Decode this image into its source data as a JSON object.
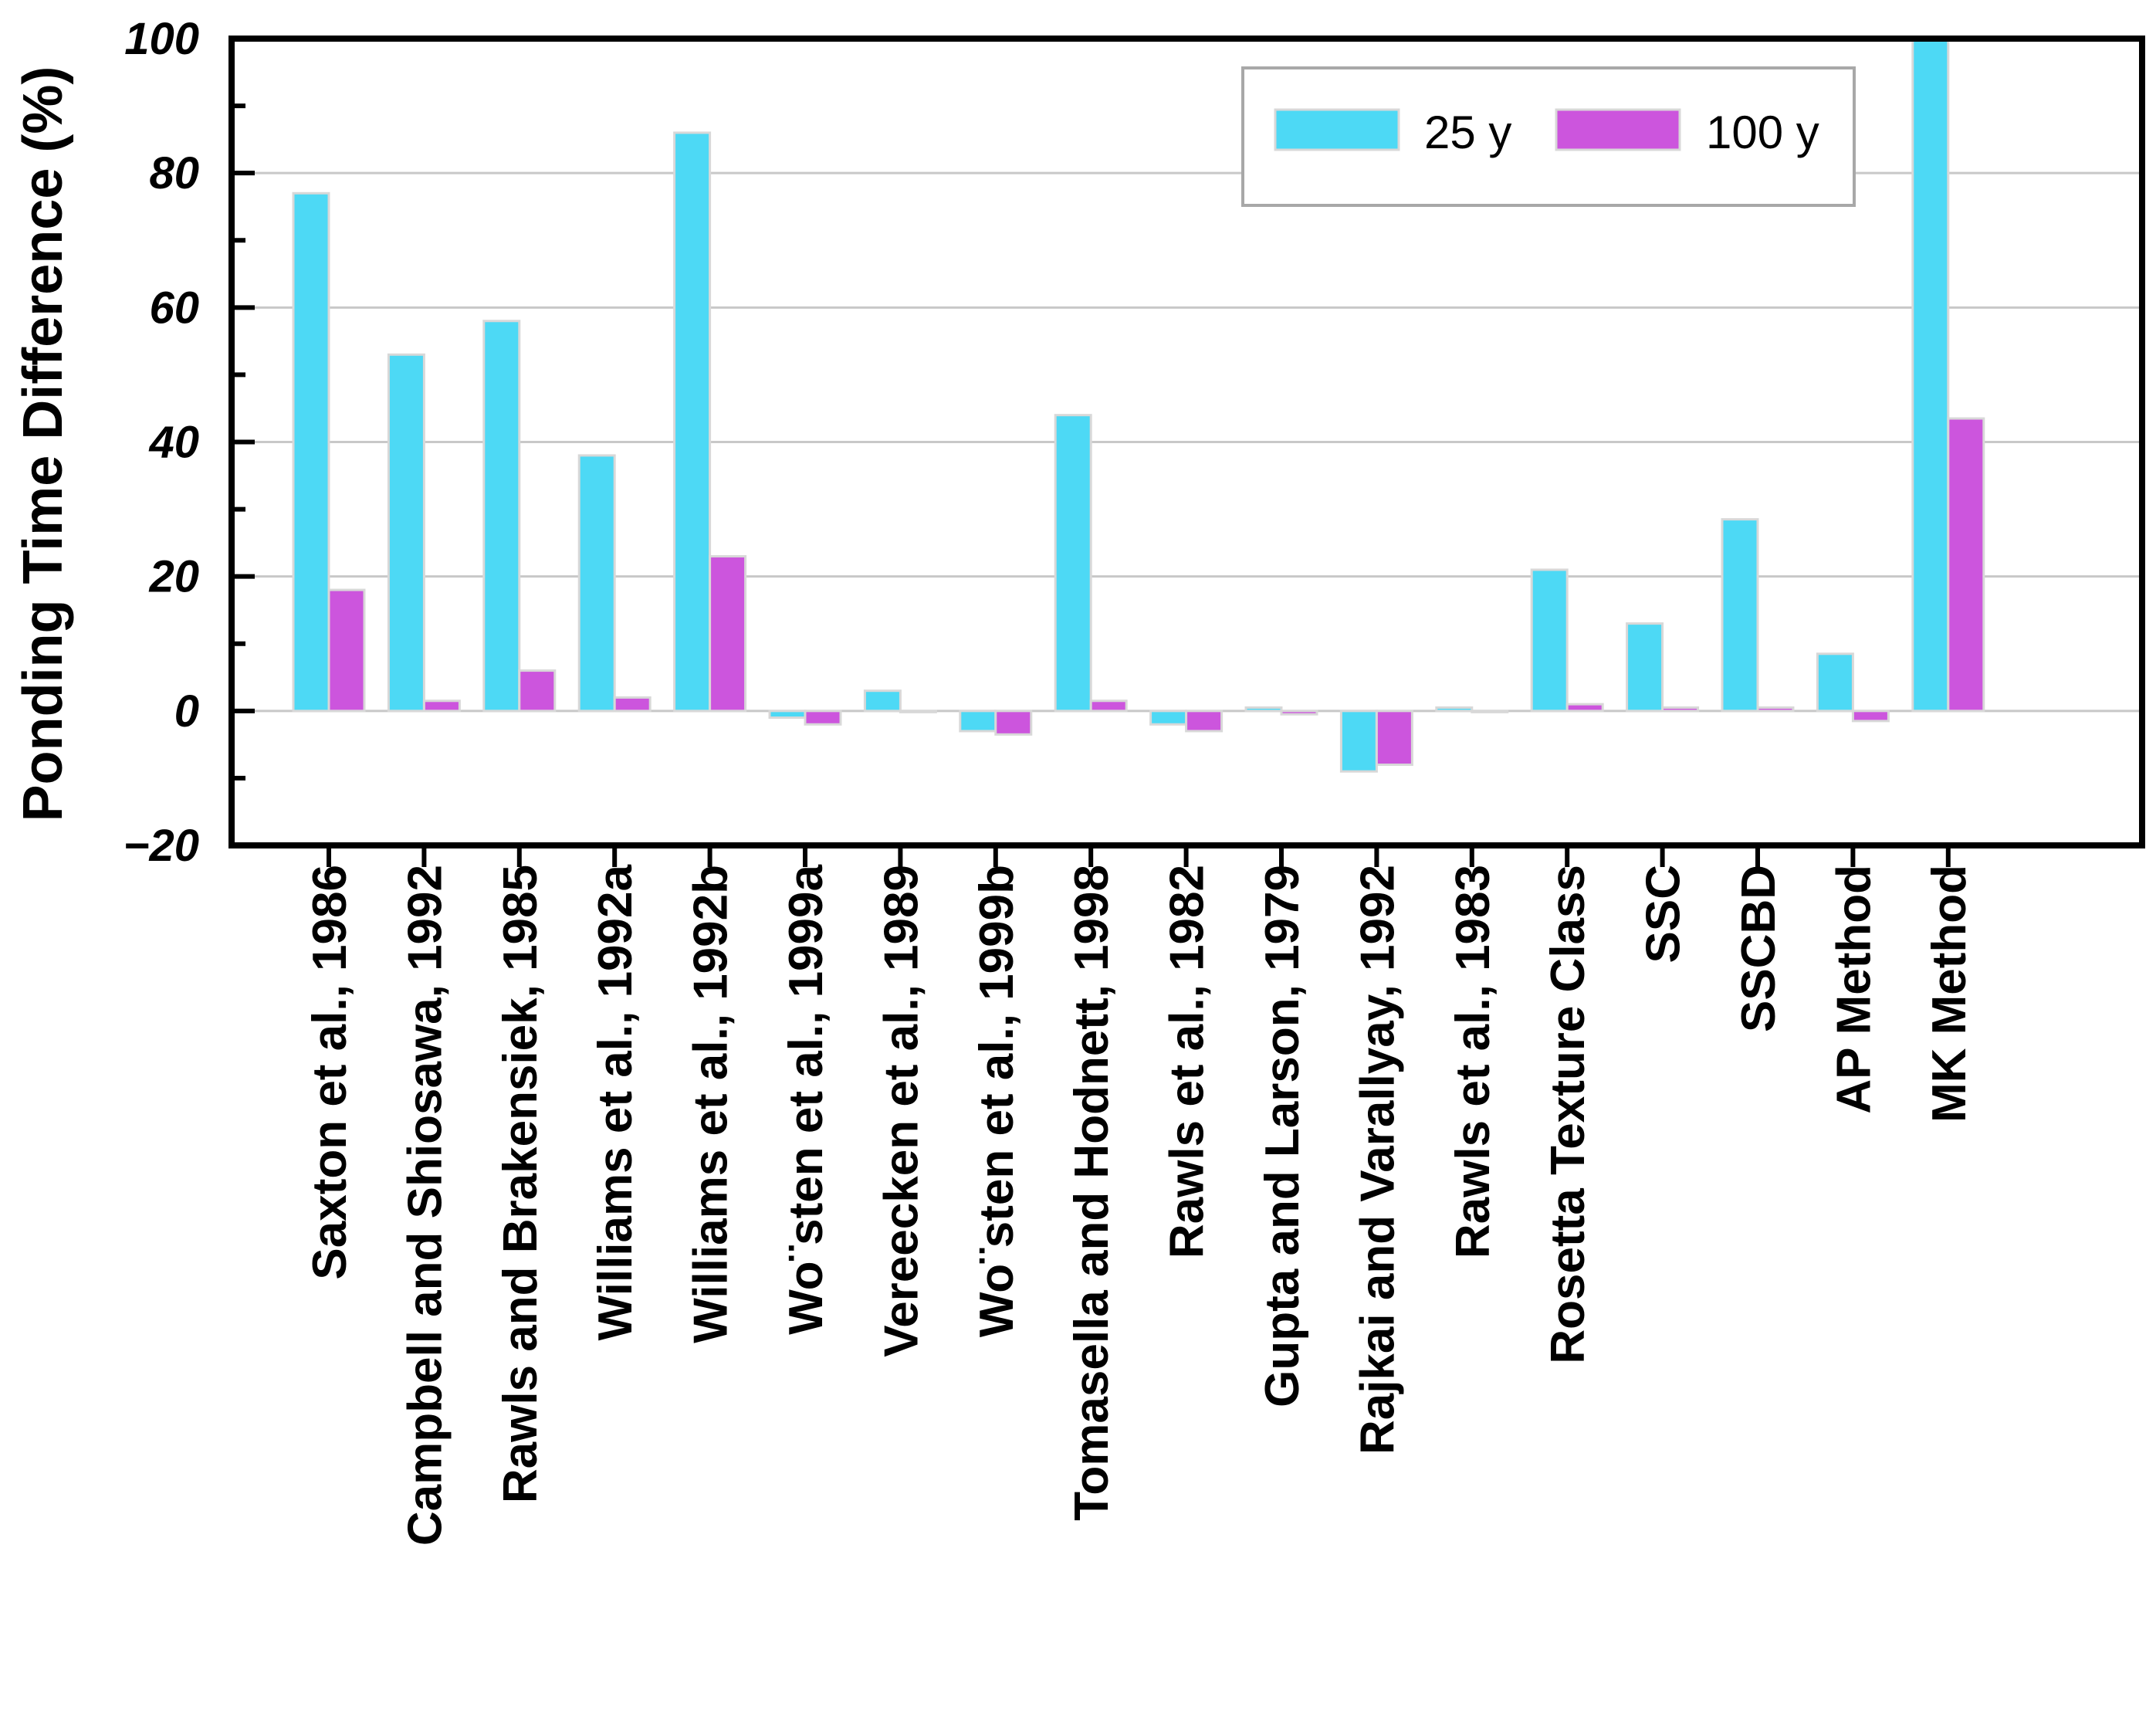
{
  "chart_data": {
    "type": "bar",
    "title": "",
    "xlabel": "",
    "ylabel": "Ponding Time Difference (%)",
    "ylim": [
      -20,
      100
    ],
    "yticks": [
      -20,
      0,
      20,
      40,
      60,
      80,
      100
    ],
    "ytick_labels": [
      "−20",
      "0",
      "20",
      "40",
      "60",
      "80",
      "100"
    ],
    "grid": true,
    "legend_position": "top-right",
    "categories": [
      "Saxton et al., 1986",
      "Campbell and Shiosawa, 1992",
      "Rawls and Brakensiek, 1985",
      "Williams et al., 1992a",
      "Williams et al., 1992b",
      "Wo¨sten et al., 1999a",
      "Vereecken et al., 1989",
      "Wo¨sten et al., 1999b",
      "Tomasella and Hodnett, 1998",
      "Rawls et al., 1982",
      "Gupta and Larson, 1979",
      "Rajkai and Varallyay, 1992",
      "Rawls et al., 1983",
      "Rosetta Texture Class",
      "SSC",
      "SSCBD",
      "AP Method",
      "MK Method"
    ],
    "series": [
      {
        "name": "25 y",
        "color": "#4dd9f5",
        "values": [
          77,
          53,
          58,
          38,
          86,
          -1,
          3,
          -3,
          44,
          -2,
          0.5,
          -9,
          0.5,
          21,
          13,
          28.5,
          8.5,
          100
        ]
      },
      {
        "name": "100 y",
        "color": "#cc55dd",
        "values": [
          18,
          1.5,
          6,
          2,
          23,
          -2,
          0,
          -3.5,
          1.5,
          -3,
          -0.5,
          -8,
          0,
          1,
          0.5,
          0.5,
          -1.5,
          43.5
        ]
      }
    ]
  }
}
